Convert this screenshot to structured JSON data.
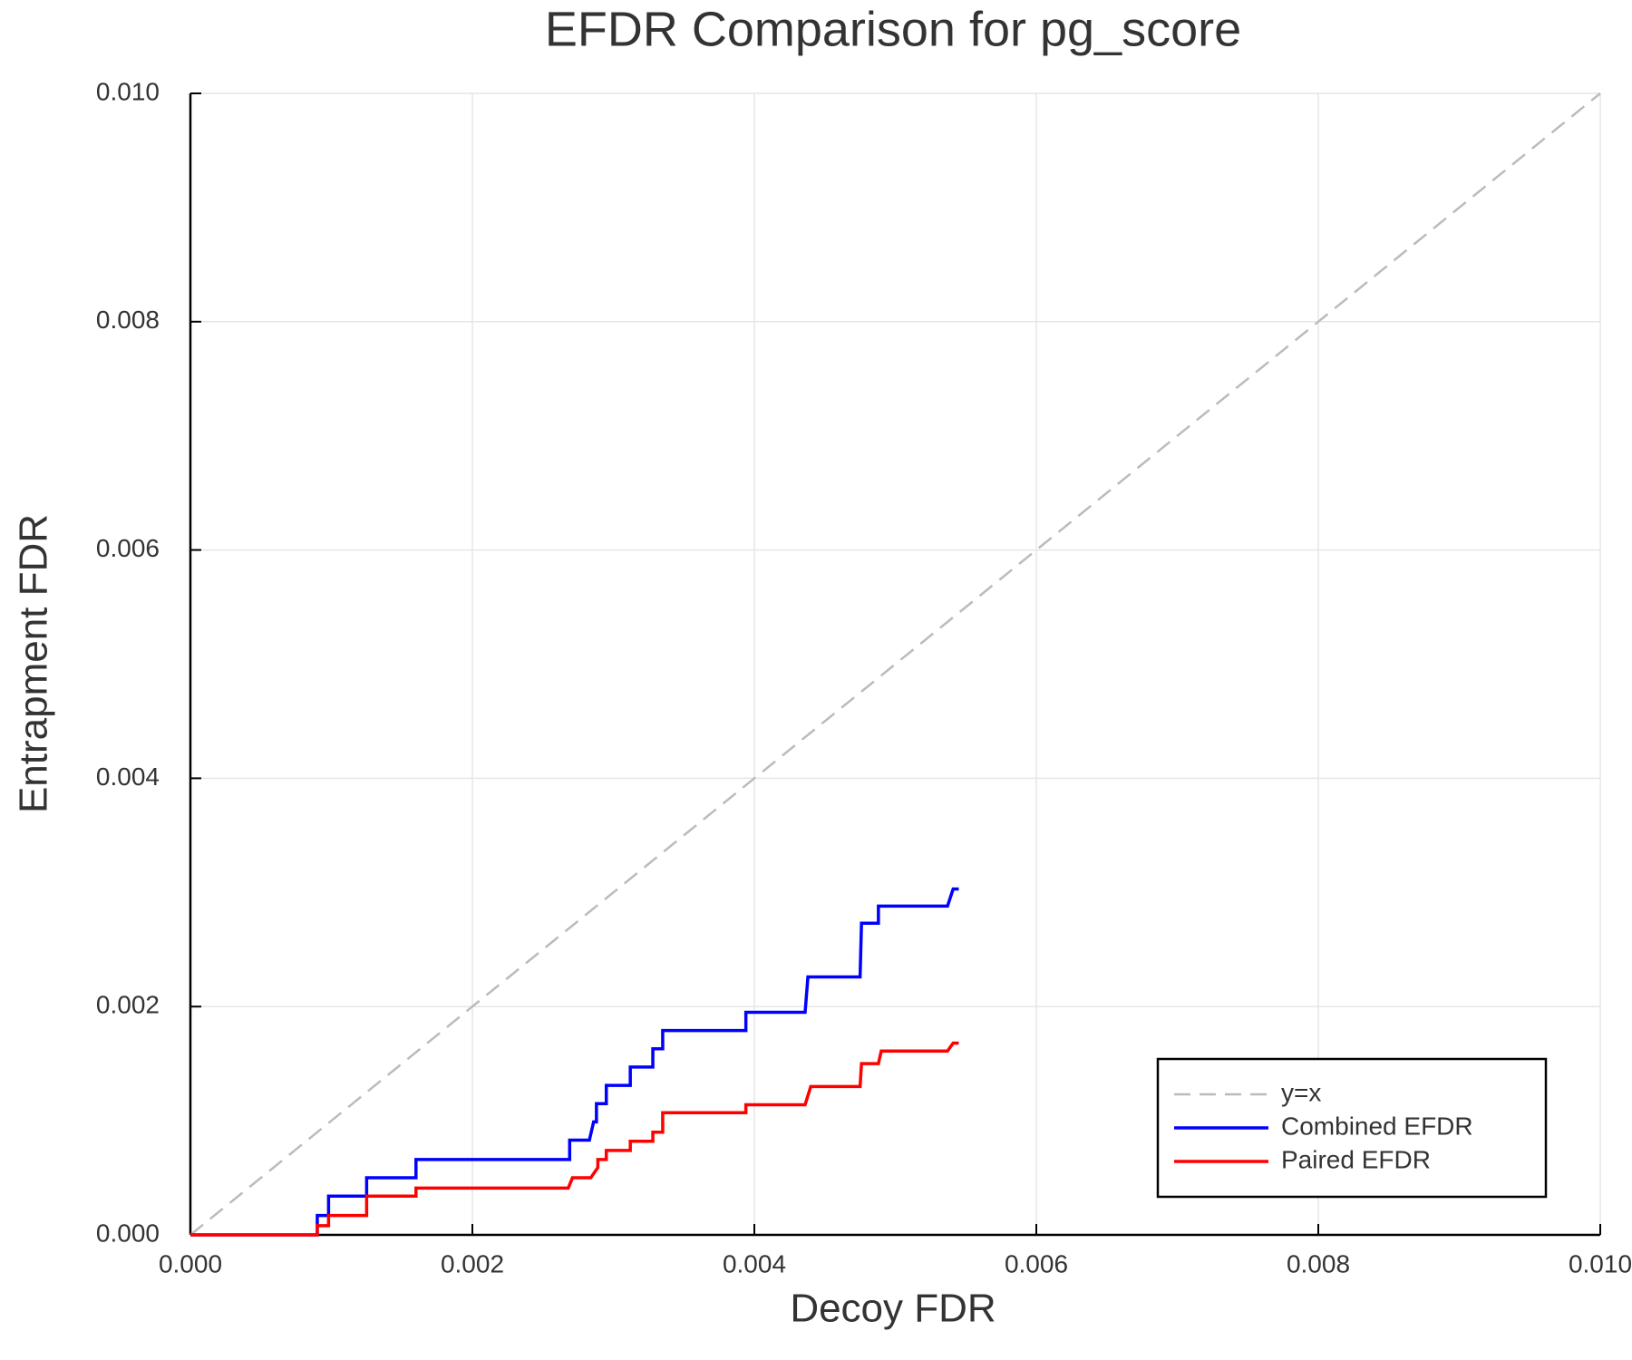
{
  "chart_data": {
    "type": "line",
    "title": "EFDR Comparison for pg_score",
    "x_label": "Decoy FDR",
    "y_label": "Entrapment FDR",
    "xlim": [
      0,
      0.01
    ],
    "ylim": [
      0,
      0.01
    ],
    "xticks": [
      {
        "value": 0,
        "label": "0.000"
      },
      {
        "value": 0.002,
        "label": "0.002"
      },
      {
        "value": 0.004,
        "label": "0.004"
      },
      {
        "value": 0.006,
        "label": "0.006"
      },
      {
        "value": 0.008,
        "label": "0.008"
      },
      {
        "value": 0.01,
        "label": "0.010"
      }
    ],
    "yticks": [
      {
        "value": 0,
        "label": "0.000"
      },
      {
        "value": 0.002,
        "label": "0.002"
      },
      {
        "value": 0.004,
        "label": "0.004"
      },
      {
        "value": 0.006,
        "label": "0.006"
      },
      {
        "value": 0.008,
        "label": "0.008"
      },
      {
        "value": 0.01,
        "label": "0.010"
      }
    ],
    "grid": true,
    "legend": "lower right",
    "series": [
      {
        "name": "y=x",
        "color": "#bbbbbb",
        "style": "dashed",
        "x": [
          0,
          0.01
        ],
        "values": [
          0,
          0.01
        ]
      },
      {
        "name": "Combined EFDR",
        "color": "#0000ff",
        "style": "solid",
        "x": [
          0,
          0.0009,
          0.0009,
          0.00098,
          0.00098,
          0.00125,
          0.00125,
          0.0016,
          0.0016,
          0.00269,
          0.00269,
          0.00283,
          0.00286,
          0.00288,
          0.00288,
          0.00295,
          0.00295,
          0.00312,
          0.00312,
          0.00328,
          0.00328,
          0.00335,
          0.00335,
          0.00394,
          0.00394,
          0.00436,
          0.00438,
          0.00475,
          0.00476,
          0.00488,
          0.00488,
          0.00537,
          0.00541,
          0.00545
        ],
        "values": [
          0,
          0,
          0.00017,
          0.00017,
          0.00034,
          0.00034,
          0.0005,
          0.0005,
          0.00066,
          0.00066,
          0.00083,
          0.00083,
          0.00099,
          0.00099,
          0.00115,
          0.00115,
          0.00131,
          0.00131,
          0.00147,
          0.00147,
          0.00163,
          0.00163,
          0.00179,
          0.00179,
          0.00195,
          0.00195,
          0.00226,
          0.00226,
          0.00273,
          0.00273,
          0.00288,
          0.00288,
          0.00303,
          0.00303
        ]
      },
      {
        "name": "Paired EFDR",
        "color": "#ff0000",
        "style": "solid",
        "x": [
          0,
          0.0009,
          0.0009,
          0.00098,
          0.00098,
          0.00125,
          0.00125,
          0.0016,
          0.0016,
          0.00268,
          0.00271,
          0.00284,
          0.00289,
          0.00289,
          0.00295,
          0.00295,
          0.00312,
          0.00312,
          0.00328,
          0.00328,
          0.00335,
          0.00335,
          0.00394,
          0.00394,
          0.00436,
          0.0044,
          0.00475,
          0.00476,
          0.00488,
          0.0049,
          0.00537,
          0.00541,
          0.00545
        ],
        "values": [
          0,
          0,
          8e-05,
          8e-05,
          0.00017,
          0.00017,
          0.00034,
          0.00034,
          0.00041,
          0.00041,
          0.0005,
          0.0005,
          0.00059,
          0.00066,
          0.00066,
          0.00074,
          0.00074,
          0.00082,
          0.00082,
          0.0009,
          0.0009,
          0.00107,
          0.00107,
          0.00114,
          0.00114,
          0.0013,
          0.0013,
          0.0015,
          0.0015,
          0.00161,
          0.00161,
          0.00168,
          0.00168
        ]
      }
    ]
  }
}
